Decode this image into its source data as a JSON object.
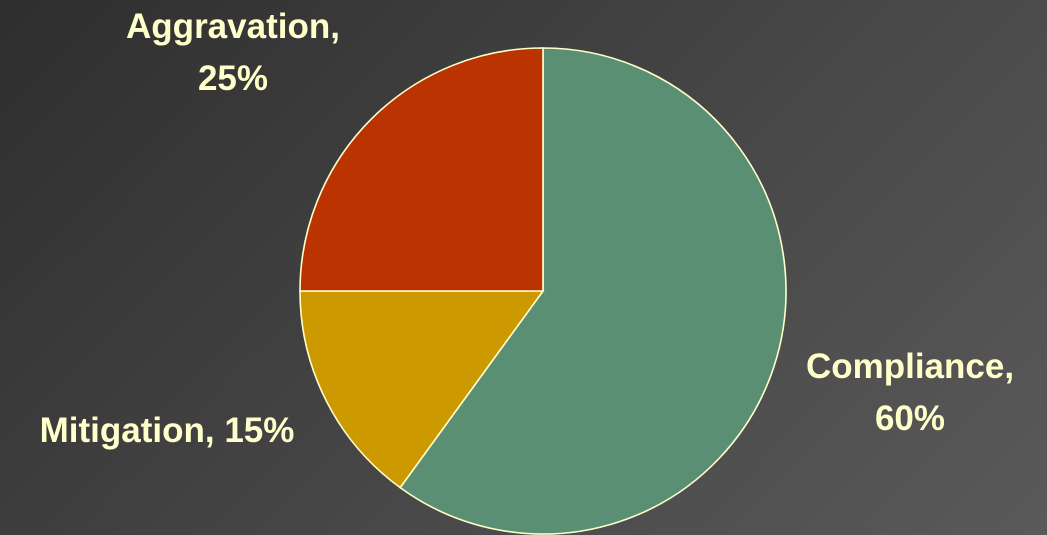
{
  "chart_data": {
    "type": "pie",
    "slices": [
      {
        "name": "Compliance",
        "value": 60,
        "color": "#5a8f73",
        "label_lines": [
          "Compliance,",
          "60%"
        ]
      },
      {
        "name": "Mitigation",
        "value": 15,
        "color": "#cc9900",
        "label_lines": [
          "Mitigation, 15%"
        ]
      },
      {
        "name": "Aggravation",
        "value": 25,
        "color": "#bb3300",
        "label_lines": [
          "Aggravation,",
          "25%"
        ]
      }
    ],
    "unit": "%",
    "label_color": "#ffffcc",
    "edge_color": "#ffffcc",
    "background_color": "#444444"
  }
}
